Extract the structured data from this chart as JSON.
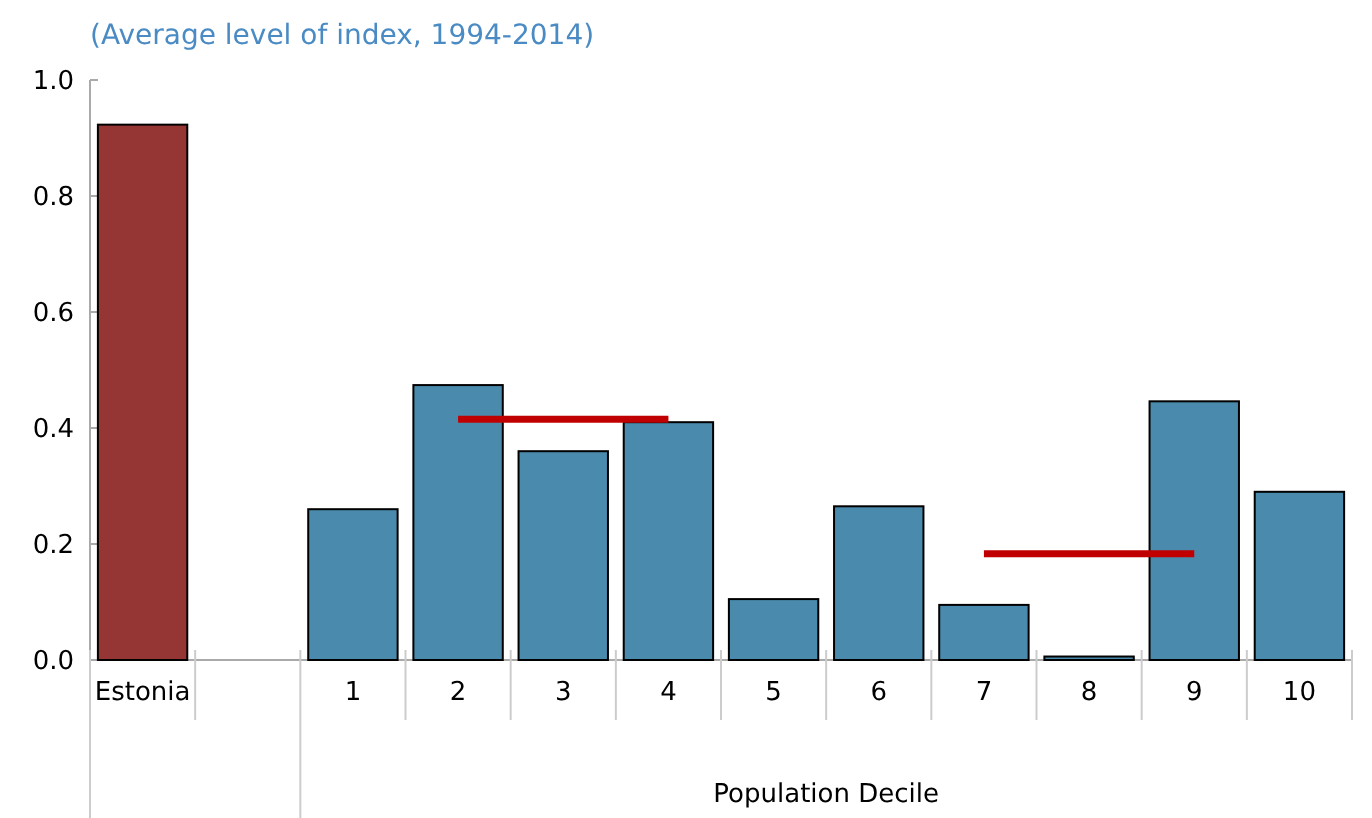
{
  "chart_data": {
    "type": "bar",
    "subtitle": "(Average level of index, 1994-2014)",
    "xlabel": "Population Decile",
    "categories": [
      "Estonia",
      null,
      "1",
      "2",
      "3",
      "4",
      "5",
      "6",
      "7",
      "8",
      "9",
      "10"
    ],
    "series": [
      {
        "colors": [
          "#963634",
          null,
          "#4a8bad",
          "#4a8bad",
          "#4a8bad",
          "#4a8bad",
          "#4a8bad",
          "#4a8bad",
          "#4a8bad",
          "#4a8bad",
          "#4a8bad",
          "#4a8bad"
        ],
        "values": [
          0.923,
          null,
          0.26,
          0.474,
          0.36,
          0.41,
          0.105,
          0.265,
          0.095,
          0.006,
          0.446,
          0.29
        ]
      },
      {
        "type": "line",
        "color": "#c00000",
        "values": [
          null,
          null,
          null,
          0.415,
          0.415,
          0.415,
          null,
          null,
          null,
          null,
          null,
          null
        ]
      },
      {
        "type": "line",
        "color": "#c00000",
        "values": [
          null,
          null,
          null,
          null,
          null,
          null,
          null,
          null,
          0.183,
          0.183,
          0.183,
          null
        ]
      }
    ],
    "ylim": [
      0,
      1
    ],
    "yticks": [
      {
        "value": 0,
        "label": "0.0"
      },
      {
        "value": 0.2,
        "label": "0.2"
      },
      {
        "value": 0.4,
        "label": "0.4"
      },
      {
        "value": 0.6,
        "label": "0.6"
      },
      {
        "value": 0.8,
        "label": "0.8"
      },
      {
        "value": 1,
        "label": "1.0"
      }
    ],
    "grid": false,
    "marker": "none",
    "line_style": "solid"
  }
}
